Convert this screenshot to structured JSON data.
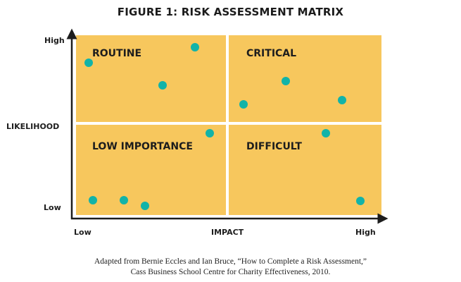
{
  "title": "FIGURE 1: RISK ASSESSMENT MATRIX",
  "quadrants": {
    "top_left": "ROUTINE",
    "top_right": "CRITICAL",
    "bottom_left": "LOW IMPORTANCE",
    "bottom_right": "DIFFICULT"
  },
  "y_axis": {
    "label": "LIKELIHOOD",
    "high": "High",
    "low": "Low"
  },
  "x_axis": {
    "label": "IMPACT",
    "low": "Low",
    "high": "High"
  },
  "caption": {
    "line1": "Adapted from Bernie Eccles and Ian Bruce, “How to Complete a Risk Assessment,”",
    "line2": "Cass Business School Centre for Charity Effectiveness, 2010."
  },
  "colors": {
    "quadrant_fill": "#f7c75d",
    "dot": "#12b3a8",
    "divider": "#ffffff",
    "axis": "#1d1d1d"
  }
}
